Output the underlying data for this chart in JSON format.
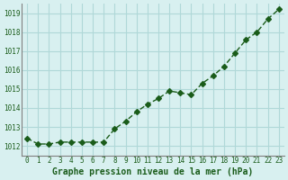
{
  "x": [
    0,
    1,
    2,
    3,
    4,
    5,
    6,
    7,
    8,
    9,
    10,
    11,
    12,
    13,
    14,
    15,
    16,
    17,
    18,
    19,
    20,
    21,
    22,
    23
  ],
  "y": [
    1012.4,
    1012.1,
    1012.1,
    1012.2,
    1012.2,
    1012.2,
    1012.2,
    1012.2,
    1012.9,
    1013.3,
    1013.8,
    1014.2,
    1014.5,
    1014.9,
    1014.8,
    1014.7,
    1015.3,
    1015.7,
    1016.2,
    1016.9,
    1017.6,
    1018.0,
    1018.7,
    1019.2
  ],
  "line_color": "#1a5c1a",
  "marker_color": "#1a5c1a",
  "bg_color": "#d8f0f0",
  "grid_color": "#b0d8d8",
  "xlabel": "Graphe pression niveau de la mer (hPa)",
  "xlabel_color": "#1a5c1a",
  "tick_color": "#1a5c1a",
  "ytick_labels": [
    "1012",
    "1013",
    "1014",
    "1015",
    "1016",
    "1017",
    "1018",
    "1019"
  ],
  "ylim": [
    1011.5,
    1019.5
  ],
  "xlim": [
    -0.5,
    23.5
  ],
  "yticks": [
    1012,
    1013,
    1014,
    1015,
    1016,
    1017,
    1018,
    1019
  ],
  "xticks": [
    0,
    1,
    2,
    3,
    4,
    5,
    6,
    7,
    8,
    9,
    10,
    11,
    12,
    13,
    14,
    15,
    16,
    17,
    18,
    19,
    20,
    21,
    22,
    23
  ]
}
